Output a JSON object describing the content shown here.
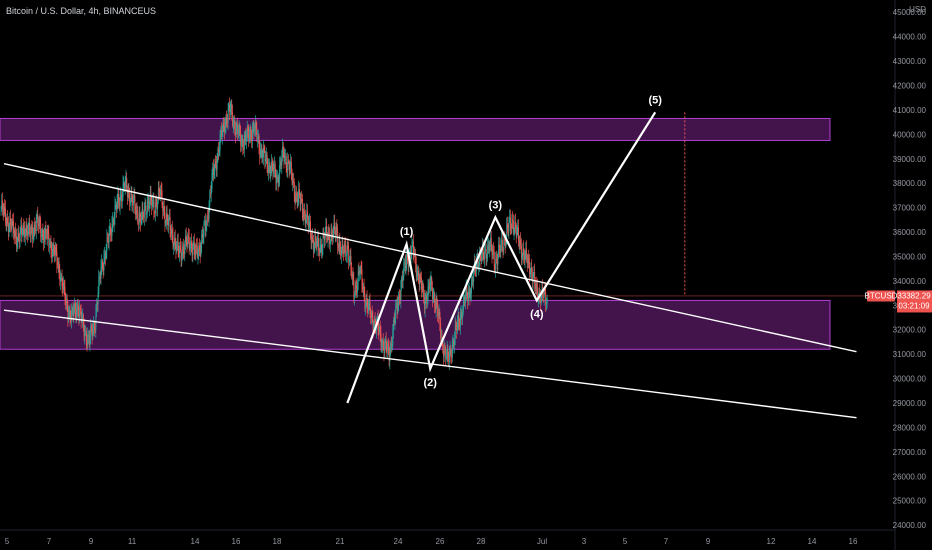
{
  "header": {
    "symbol_line": "Bitcoin / U.S. Dollar, 4h, BINANCEUS"
  },
  "price_axis": {
    "currency": "USD"
  },
  "price_badge": {
    "symbol": "BTCUSD",
    "price": "33382.29",
    "countdown": "03:21:09"
  },
  "colors": {
    "background": "#000000",
    "up_candle": "#26a69a",
    "down_candle": "#ef5350",
    "zone_fill": "#5a1a66",
    "zone_border": "#b040d0",
    "line": "#ffffff",
    "price_line": "#ef5350"
  },
  "chart_data": {
    "type": "candlestick",
    "ylim": [
      23800,
      45500
    ],
    "y_ticks": [
      24000,
      25000,
      26000,
      27000,
      28000,
      29000,
      30000,
      31000,
      32000,
      33000,
      34000,
      35000,
      36000,
      37000,
      38000,
      39000,
      40000,
      41000,
      42000,
      43000,
      44000,
      45000
    ],
    "x_ticks": [
      "5",
      "7",
      "9",
      "11",
      "14",
      "16",
      "18",
      "21",
      "24",
      "26",
      "28",
      "Jul",
      "3",
      "5",
      "7",
      "9",
      "12",
      "14",
      "16"
    ],
    "current_price": 33382.29,
    "zones": [
      {
        "name": "resistance-zone",
        "from": 39750,
        "to": 40650
      },
      {
        "name": "support-zone",
        "from": 31200,
        "to": 33200
      }
    ],
    "closes": [
      37000,
      36500,
      36100,
      35700,
      36200,
      35900,
      36400,
      36000,
      35700,
      35200,
      34400,
      33100,
      32500,
      33000,
      32100,
      31500,
      32400,
      34500,
      35400,
      36500,
      37300,
      37900,
      37500,
      36800,
      36500,
      37300,
      37000,
      37600,
      36600,
      36000,
      35200,
      35300,
      35700,
      35100,
      35500,
      36500,
      38300,
      39400,
      40500,
      41000,
      40200,
      39700,
      39900,
      40300,
      39500,
      38900,
      38600,
      38200,
      39200,
      38700,
      37600,
      37200,
      36500,
      35700,
      35300,
      35800,
      35900,
      36000,
      35100,
      35400,
      33500,
      34400,
      33200,
      32500,
      32100,
      31400,
      31000,
      32500,
      33800,
      34900,
      35300,
      34200,
      33200,
      33800,
      33100,
      31500,
      30700,
      31600,
      32500,
      33300,
      33800,
      34900,
      35000,
      35500,
      34800,
      35300,
      36000,
      36500,
      35700,
      35000,
      34600,
      33600,
      33400
    ],
    "annotations": {
      "wave_labels": [
        "(1)",
        "(2)",
        "(3)",
        "(4)",
        "(5)"
      ],
      "wave_points": [
        {
          "bar": 58,
          "price": 29000
        },
        {
          "bar": 68,
          "price": 35500
        },
        {
          "bar": 72,
          "price": 30400
        },
        {
          "bar": 83,
          "price": 36600
        },
        {
          "bar": 90,
          "price": 33200
        },
        {
          "bar": 110,
          "price": 40900
        }
      ],
      "trendlines": [
        {
          "name": "upper-trendline",
          "from": {
            "bar": 0,
            "price": 38800
          },
          "to": {
            "bar": 144,
            "price": 31100
          }
        },
        {
          "name": "lower-trendline",
          "from": {
            "bar": 0,
            "price": 32800
          },
          "to": {
            "bar": 144,
            "price": 28400
          }
        }
      ],
      "target_marker": {
        "bar": 115,
        "from_price": 33400,
        "to_price": 40900
      }
    }
  }
}
